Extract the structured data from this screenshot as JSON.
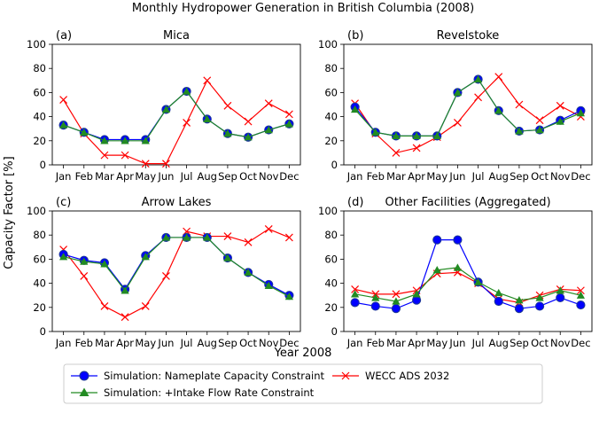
{
  "figure": {
    "title": "Monthly Hydropower Generation in British Columbia (2008)",
    "ylabel": "Capacity Factor [%]",
    "xlabel": "Year 2008"
  },
  "legend": {
    "nameplate": "Simulation: Nameplate Capacity Constraint",
    "intake": "Simulation: +Intake Flow Rate Constraint",
    "wecc": "WECC ADS 2032"
  },
  "colors": {
    "nameplate": "#0000ff",
    "intake": "#228b22",
    "wecc": "#ff0000",
    "nameplate_marker_edge": "#1f3a93"
  },
  "chart_data": [
    {
      "type": "line",
      "panel_label": "(a)",
      "title": "Mica",
      "categories": [
        "Jan",
        "Feb",
        "Mar",
        "Apr",
        "May",
        "Jun",
        "Jul",
        "Aug",
        "Sep",
        "Oct",
        "Nov",
        "Dec"
      ],
      "yticks": [
        0,
        20,
        40,
        60,
        80,
        100
      ],
      "ylim": [
        0,
        100
      ],
      "series": [
        {
          "name": "Simulation: Nameplate Capacity Constraint",
          "key": "nameplate",
          "values": [
            33,
            27,
            21,
            21,
            21,
            46,
            61,
            38,
            26,
            23,
            29,
            34
          ]
        },
        {
          "name": "Simulation: +Intake Flow Rate Constraint",
          "key": "intake",
          "values": [
            33,
            27,
            20,
            20,
            20,
            46,
            61,
            38,
            26,
            23,
            29,
            34
          ]
        },
        {
          "name": "WECC ADS 2032",
          "key": "wecc",
          "values": [
            54,
            26,
            8,
            8,
            1,
            1,
            35,
            70,
            49,
            36,
            51,
            42
          ]
        }
      ]
    },
    {
      "type": "line",
      "panel_label": "(b)",
      "title": "Revelstoke",
      "categories": [
        "Jan",
        "Feb",
        "Mar",
        "Apr",
        "May",
        "Jun",
        "Jul",
        "Aug",
        "Sep",
        "Oct",
        "Nov",
        "Dec"
      ],
      "yticks": [
        0,
        20,
        40,
        60,
        80,
        100
      ],
      "ylim": [
        0,
        100
      ],
      "series": [
        {
          "name": "Simulation: Nameplate Capacity Constraint",
          "key": "nameplate",
          "values": [
            48,
            27,
            24,
            24,
            24,
            60,
            71,
            45,
            28,
            29,
            37,
            45
          ]
        },
        {
          "name": "Simulation: +Intake Flow Rate Constraint",
          "key": "intake",
          "values": [
            46,
            27,
            24,
            24,
            24,
            60,
            71,
            45,
            28,
            29,
            36,
            43
          ]
        },
        {
          "name": "WECC ADS 2032",
          "key": "wecc",
          "values": [
            51,
            26,
            10,
            14,
            23,
            35,
            56,
            73,
            50,
            37,
            49,
            40
          ]
        }
      ]
    },
    {
      "type": "line",
      "panel_label": "(c)",
      "title": "Arrow Lakes",
      "categories": [
        "Jan",
        "Feb",
        "Mar",
        "Apr",
        "May",
        "Jun",
        "Jul",
        "Aug",
        "Sep",
        "Oct",
        "Nov",
        "Dec"
      ],
      "yticks": [
        0,
        20,
        40,
        60,
        80,
        100
      ],
      "ylim": [
        0,
        100
      ],
      "series": [
        {
          "name": "Simulation: Nameplate Capacity Constraint",
          "key": "nameplate",
          "values": [
            64,
            59,
            57,
            35,
            63,
            78,
            78,
            78,
            61,
            49,
            39,
            30
          ]
        },
        {
          "name": "Simulation: +Intake Flow Rate Constraint",
          "key": "intake",
          "values": [
            62,
            58,
            56,
            34,
            62,
            78,
            78,
            78,
            61,
            49,
            38,
            29
          ]
        },
        {
          "name": "WECC ADS 2032",
          "key": "wecc",
          "values": [
            68,
            46,
            21,
            12,
            21,
            46,
            83,
            79,
            79,
            74,
            85,
            78
          ]
        }
      ]
    },
    {
      "type": "line",
      "panel_label": "(d)",
      "title": "Other Facilities (Aggregated)",
      "categories": [
        "Jan",
        "Feb",
        "Mar",
        "Apr",
        "May",
        "Jun",
        "Jul",
        "Aug",
        "Sep",
        "Oct",
        "Nov",
        "Dec"
      ],
      "yticks": [
        0,
        20,
        40,
        60,
        80,
        100
      ],
      "ylim": [
        0,
        100
      ],
      "series": [
        {
          "name": "Simulation: Nameplate Capacity Constraint",
          "key": "nameplate",
          "values": [
            24,
            21,
            19,
            26,
            76,
            76,
            41,
            25,
            19,
            21,
            28,
            22
          ]
        },
        {
          "name": "Simulation: +Intake Flow Rate Constraint",
          "key": "intake",
          "values": [
            31,
            28,
            25,
            31,
            51,
            53,
            41,
            32,
            26,
            28,
            34,
            30
          ]
        },
        {
          "name": "WECC ADS 2032",
          "key": "wecc",
          "values": [
            35,
            31,
            31,
            34,
            48,
            49,
            40,
            27,
            24,
            30,
            35,
            34
          ]
        }
      ]
    }
  ]
}
